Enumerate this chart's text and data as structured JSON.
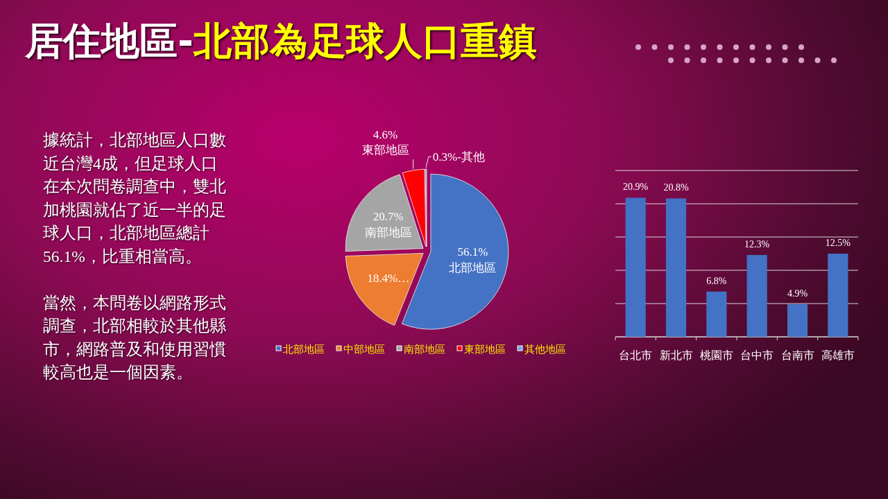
{
  "chart_data": [
    {
      "type": "other",
      "title": "居住地區-北部為足球人口重鎮",
      "annotations": [
        "據統計，北部地區人口數近台灣4成，但足球人口在本次問卷調查中，雙北加桃園就佔了近一半的足球人口，北部地區總計56.1%，比重相當高。",
        "當然，本問卷以網路形式調查，北部相較於其他縣市，網路普及和使用習慣較高也是一個因素。"
      ]
    },
    {
      "type": "pie",
      "categories": [
        "北部地區",
        "中部地區",
        "南部地區",
        "東部地區",
        "其他地區"
      ],
      "values": [
        56.1,
        18.4,
        20.7,
        4.6,
        0.3
      ],
      "colors": [
        "#4472c4",
        "#ed7d31",
        "#a5a5a5",
        "#ff0000",
        "#7ca3dd"
      ],
      "value_labels": [
        "56.1%\n北部地區",
        "18.4%…",
        "20.7%\n南部地區",
        "4.6%\n東部地區",
        "0.3%-其他"
      ],
      "legend": "bottom"
    },
    {
      "type": "bar",
      "categories": [
        "台北市",
        "新北市",
        "桃園市",
        "台中市",
        "台南市",
        "高雄市"
      ],
      "values": [
        20.9,
        20.8,
        6.8,
        12.3,
        4.9,
        12.5
      ],
      "color": "#4472c4",
      "value_labels": [
        "20.9%",
        "20.8%",
        "6.8%",
        "12.3%",
        "4.9%",
        "12.5%"
      ],
      "ylim": [
        0,
        25
      ],
      "yticks": [
        {
          "value": 0,
          "label": null
        },
        {
          "value": 5,
          "label": null
        },
        {
          "value": 10,
          "label": null
        },
        {
          "value": 15,
          "label": null
        },
        {
          "value": 20,
          "label": null
        },
        {
          "value": 25,
          "label": null
        }
      ],
      "grid": "y",
      "tick_labels": "x"
    }
  ]
}
